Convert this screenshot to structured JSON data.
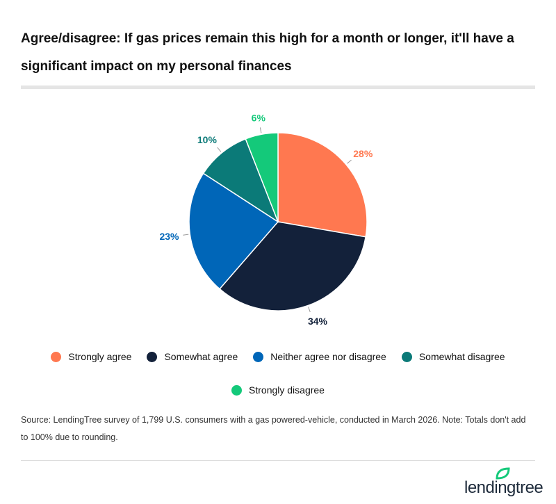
{
  "title": "Agree/disagree: If gas prices remain this high for a month or longer, it'll have a significant impact on my personal finances",
  "chart_data": {
    "type": "pie",
    "title": "Agree/disagree: If gas prices remain this high for a month or longer, it'll have a significant impact on my personal finances",
    "categories": [
      "Strongly agree",
      "Somewhat agree",
      "Neither agree nor disagree",
      "Somewhat disagree",
      "Strongly disagree"
    ],
    "values": [
      28,
      34,
      23,
      10,
      6
    ],
    "labels": [
      "28%",
      "34%",
      "23%",
      "10%",
      "6%"
    ],
    "colors": [
      "#FF7850",
      "#13213A",
      "#0066B8",
      "#0B7A78",
      "#14C97A"
    ],
    "label_colors": [
      "#FF7850",
      "#13213A",
      "#0066B8",
      "#0B7A78",
      "#14C97A"
    ],
    "legend_placement": "bottom"
  },
  "source": "Source: LendingTree survey of 1,799 U.S. consumers with a gas powered-vehicle, conducted in March 2026. Note: Totals don't add to 100% due to rounding.",
  "logo": {
    "text": "lendingtree",
    "leaf_color": "#14C97A"
  }
}
